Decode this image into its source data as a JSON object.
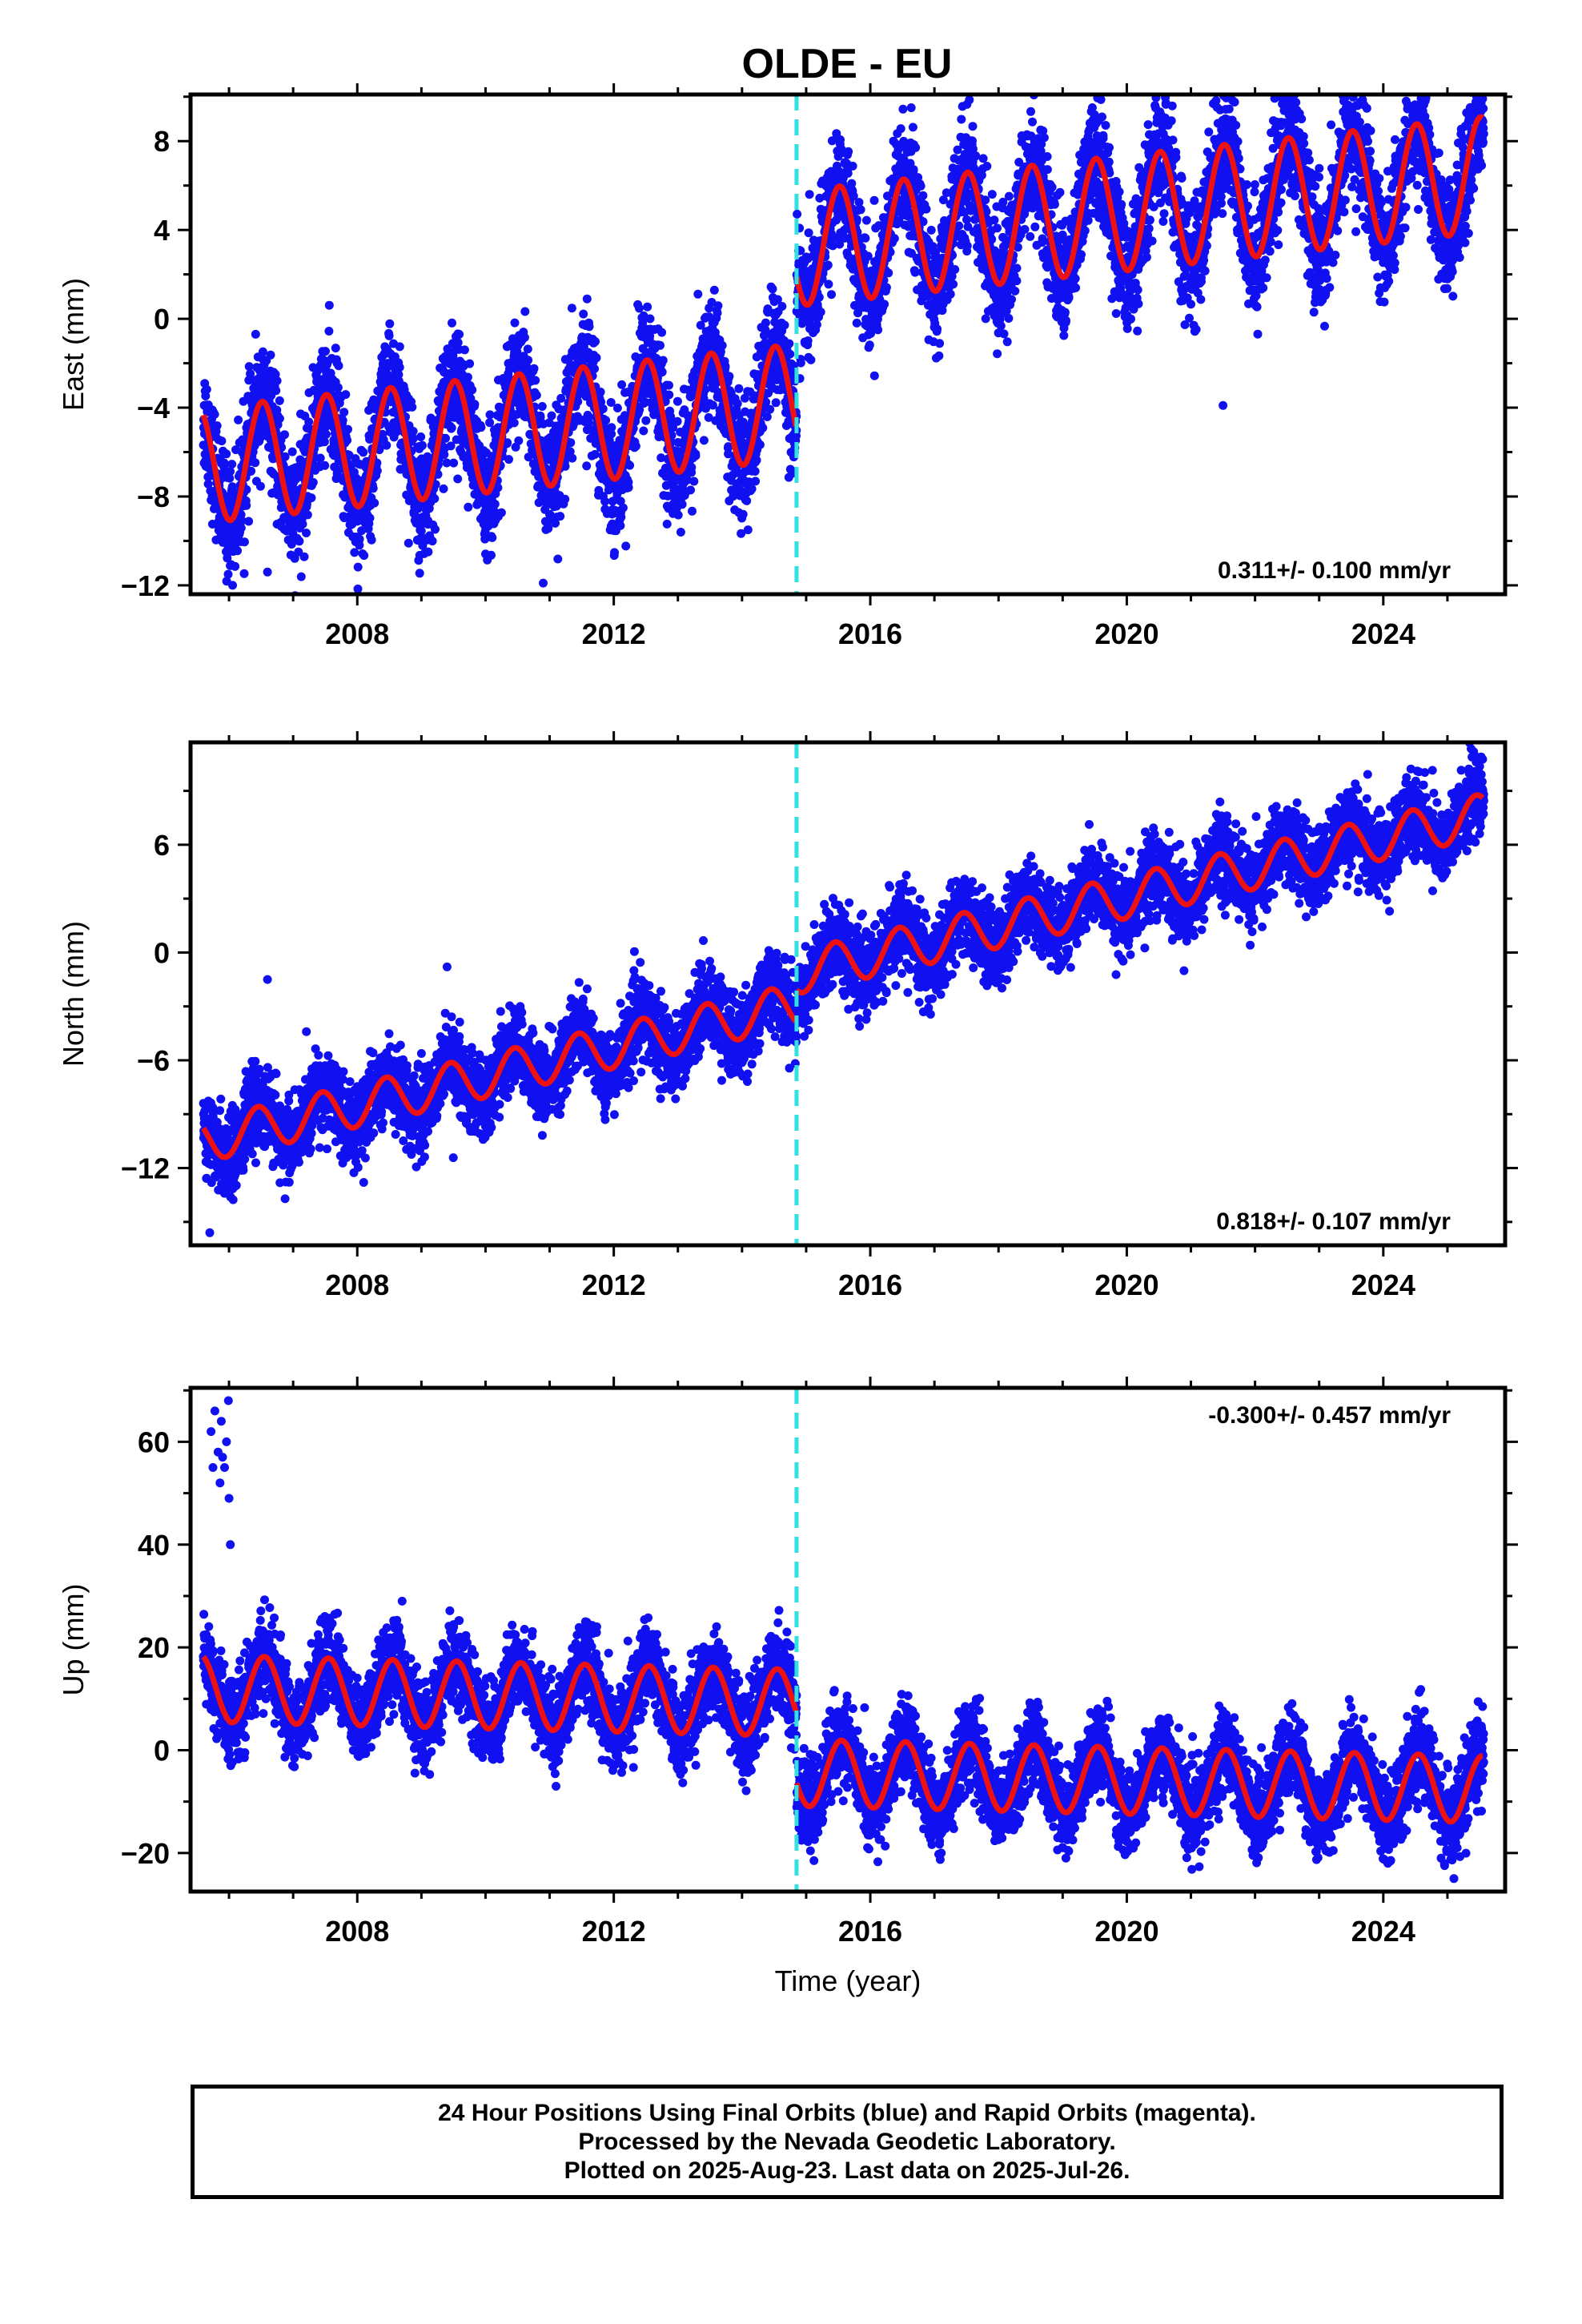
{
  "title": "OLDE - EU",
  "caption": [
    "24 Hour Positions Using Final Orbits (blue) and Rapid Orbits (magenta).",
    "Processed by the Nevada Geodetic Laboratory.",
    "Plotted on 2025-Aug-23. Last data on 2025-Jul-26."
  ],
  "colors": {
    "data": "#1010f0",
    "model": "#ee1111",
    "offset_line": "#33e0e0",
    "frame": "#000000"
  },
  "chart_data": [
    {
      "type": "scatter",
      "title": "OLDE - EU",
      "ylabel": "East (mm)",
      "xlabel": "",
      "xlim": [
        2005.4,
        2025.9
      ],
      "ylim": [
        -12.4,
        10.1
      ],
      "xticks": [
        2008,
        2012,
        2016,
        2020,
        2024
      ],
      "yticks": [
        -12,
        -8,
        -4,
        0,
        4,
        8
      ],
      "ytick_labels": [
        "−12",
        "−8",
        "−4",
        "0",
        "4",
        "8"
      ],
      "rate_label": "0.311+/- 0.100 mm/yr",
      "rate_position": "bottom-right",
      "offset_epoch": 2014.85,
      "data_range": [
        2005.6,
        2025.57
      ],
      "model": {
        "start": 2005.6,
        "trend": 0.311,
        "intercept_before": -3.5,
        "intercept_after": 3.4,
        "reference_year": 2015.6,
        "amplitude": 2.6,
        "phase_year": 2006.52
      },
      "scatter_sigma": 1.3,
      "outliers": [
        [
          2006.6,
          -11.4
        ],
        [
          2008.8,
          -10.1
        ],
        [
          2010.9,
          -11.9
        ],
        [
          2010.2,
          -8.9
        ],
        [
          2013.8,
          -8.2
        ],
        [
          2021.5,
          -3.9
        ],
        [
          2023.6,
          9.6
        ]
      ],
      "series": [
        {
          "name": "",
          "values": []
        }
      ]
    },
    {
      "type": "scatter",
      "ylabel": "North (mm)",
      "xlabel": "",
      "xlim": [
        2005.4,
        2025.9
      ],
      "ylim": [
        -16.3,
        11.7
      ],
      "xticks": [
        2008,
        2012,
        2016,
        2020,
        2024
      ],
      "yticks": [
        -12,
        -6,
        0,
        6
      ],
      "ytick_labels": [
        "−12",
        "−6",
        "0",
        "6"
      ],
      "rate_label": "0.818+/- 0.107 mm/yr",
      "rate_position": "bottom-right",
      "offset_epoch": 2014.85,
      "data_range": [
        2005.6,
        2025.57
      ],
      "model": {
        "start": 2005.6,
        "trend": 0.818,
        "intercept_before": -2.3,
        "intercept_after": -0.5,
        "reference_year": 2015.6,
        "amplitude": 1.2,
        "phase_year": 2006.45
      },
      "scatter_sigma": 1.1,
      "outliers": [
        [
          2005.7,
          -15.6
        ],
        [
          2005.8,
          -12.5
        ],
        [
          2006.1,
          -13.0
        ],
        [
          2006.6,
          -1.5
        ],
        [
          2009.4,
          -0.8
        ],
        [
          2008.1,
          -12.8
        ]
      ],
      "series": [
        {
          "name": "",
          "values": []
        }
      ]
    },
    {
      "type": "scatter",
      "ylabel": "Up (mm)",
      "xlabel": "Time (year)",
      "xlim": [
        2005.4,
        2025.9
      ],
      "ylim": [
        -27.5,
        70.5
      ],
      "xticks": [
        2008,
        2012,
        2016,
        2020,
        2024
      ],
      "yticks": [
        -20,
        0,
        20,
        40,
        60
      ],
      "ytick_labels": [
        "−20",
        "0",
        "20",
        "40",
        "60"
      ],
      "rate_label": "-0.300+/- 0.457 mm/yr",
      "rate_position": "top-right",
      "offset_epoch": 2014.85,
      "data_range": [
        2005.6,
        2025.57
      ],
      "model": {
        "start": 2005.6,
        "trend": -0.3,
        "intercept_before": 9.0,
        "intercept_after": -4.6,
        "reference_year": 2015.6,
        "amplitude": 6.5,
        "phase_year": 2006.55
      },
      "scatter_sigma": 4.0,
      "outliers": [
        [
          2005.72,
          62
        ],
        [
          2005.78,
          66
        ],
        [
          2005.83,
          58
        ],
        [
          2005.88,
          64
        ],
        [
          2005.93,
          55
        ],
        [
          2005.96,
          60
        ],
        [
          2005.99,
          68
        ],
        [
          2005.86,
          52
        ],
        [
          2006.0,
          49
        ],
        [
          2006.02,
          40
        ],
        [
          2005.75,
          55
        ],
        [
          2005.9,
          57
        ],
        [
          2014.7,
          23
        ],
        [
          2008.7,
          29
        ]
      ],
      "series": [
        {
          "name": "",
          "values": []
        }
      ]
    }
  ]
}
